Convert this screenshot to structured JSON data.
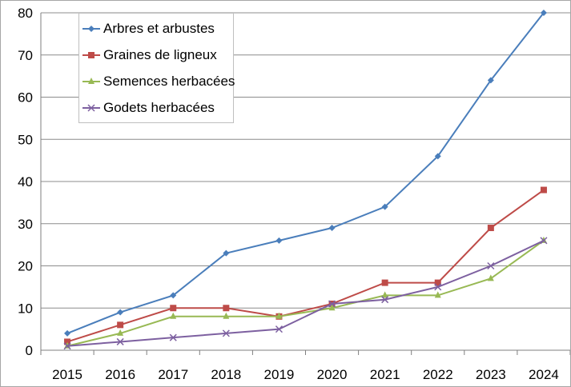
{
  "chart_data": {
    "type": "line",
    "title": "",
    "xlabel": "",
    "ylabel": "",
    "categories": [
      "2015",
      "2016",
      "2017",
      "2018",
      "2019",
      "2020",
      "2021",
      "2022",
      "2023",
      "2024"
    ],
    "ylim": [
      0,
      80
    ],
    "yticks": [
      "0",
      "10",
      "20",
      "30",
      "40",
      "50",
      "60",
      "70",
      "80"
    ],
    "grid": "horizontal",
    "legend_position": "top-left",
    "series": [
      {
        "name": "Arbres et arbustes",
        "color": "#4a7ebb",
        "marker": "diamond",
        "values": [
          4,
          9,
          13,
          23,
          26,
          29,
          34,
          46,
          64,
          80
        ]
      },
      {
        "name": "Graines de ligneux",
        "color": "#be4b48",
        "marker": "square",
        "values": [
          2,
          6,
          10,
          10,
          8,
          11,
          16,
          16,
          29,
          38
        ]
      },
      {
        "name": "Semences herbacées",
        "color": "#98b954",
        "marker": "triangle",
        "values": [
          1,
          4,
          8,
          8,
          8,
          10,
          13,
          13,
          17,
          26
        ]
      },
      {
        "name": "Godets herbacées",
        "color": "#7d60a0",
        "marker": "x",
        "values": [
          1,
          2,
          3,
          4,
          5,
          11,
          12,
          15,
          20,
          26
        ]
      }
    ]
  }
}
